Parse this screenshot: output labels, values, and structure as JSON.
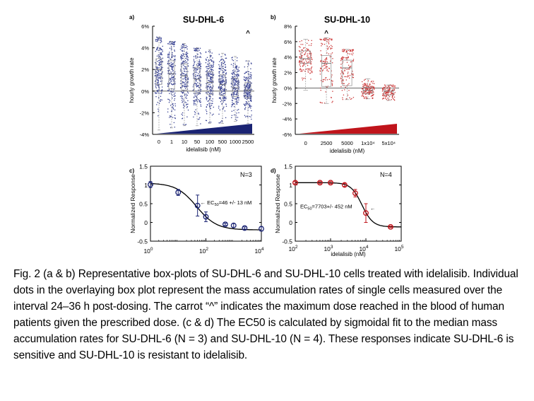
{
  "colors": {
    "navy": "#1a2373",
    "navy_dot": "#3a4494",
    "red": "#c0141b",
    "red_dot": "#cc3b3b",
    "axis": "#000000",
    "zero_line": "#555555",
    "box_line": "#9a9a9a"
  },
  "chart_data": [
    {
      "panel": "a)",
      "type": "box-scatter",
      "title": "SU-DHL-6",
      "xlabel": "idelalisib (nM)",
      "ylabel": "hourly growth rate",
      "yticks": [
        "6%",
        "4%",
        "2%",
        "0%",
        "-2%",
        "-4%"
      ],
      "ylim": [
        -4,
        6
      ],
      "categories": [
        "0",
        "1",
        "10",
        "50",
        "100",
        "500",
        "1000",
        "2500"
      ],
      "medians": [
        2.0,
        1.6,
        1.4,
        1.1,
        0.8,
        0.6,
        0.3,
        0.1
      ],
      "q1": [
        0.6,
        0.2,
        0.1,
        -0.2,
        -0.3,
        -0.4,
        -0.5,
        -0.6
      ],
      "q3": [
        3.0,
        2.8,
        2.5,
        2.2,
        1.8,
        1.5,
        1.2,
        0.8
      ],
      "whisker_low": [
        -3.6,
        -3.4,
        -3.2,
        -3.2,
        -3.0,
        -3.0,
        -2.8,
        -3.0
      ],
      "whisker_high": [
        5.0,
        4.6,
        4.4,
        4.0,
        3.8,
        3.5,
        3.2,
        2.8
      ],
      "caret_label": "^",
      "caret_category": "2500",
      "dose_wedge": "navy"
    },
    {
      "panel": "b)",
      "type": "box-scatter",
      "title": "SU-DHL-10",
      "xlabel": "idelalisib (nM)",
      "ylabel": "hourly growth rate",
      "yticks": [
        "8%",
        "6%",
        "4%",
        "2%",
        "0%",
        "-2%",
        "-4%",
        "-6%"
      ],
      "ylim": [
        -6,
        8
      ],
      "categories": [
        "0",
        "2500",
        "5000",
        "1x10⁴",
        "5x10⁴"
      ],
      "medians": [
        3.8,
        3.2,
        2.6,
        -0.3,
        -0.4
      ],
      "q1": [
        3.2,
        0.2,
        0.3,
        -0.7,
        -0.9
      ],
      "q3": [
        4.8,
        4.2,
        3.6,
        0.1,
        0.0
      ],
      "whisker_low": [
        -0.3,
        -2.0,
        -1.5,
        -1.4,
        -1.6
      ],
      "whisker_high": [
        6.3,
        6.5,
        5.0,
        1.2,
        0.4
      ],
      "caret_label": "^",
      "caret_category": "2500",
      "dose_wedge": "red"
    },
    {
      "panel": "c)",
      "type": "line",
      "xlabel": "",
      "ylabel": "Normalized Response",
      "xscale": "log",
      "xlim_exp": [
        0,
        4
      ],
      "xticks": [
        {
          "base": "10",
          "exp": "0"
        },
        {
          "base": "10",
          "exp": "2"
        },
        {
          "base": "10",
          "exp": "4"
        }
      ],
      "ylim": [
        -0.5,
        1.5
      ],
      "yticks": [
        "1.5",
        "1",
        "0.5",
        "0",
        "-0.5"
      ],
      "label": "N=3",
      "annotation": {
        "arrow": "←",
        "pre": "EC",
        "sub": "50",
        "post": "=46 +/- 13 nM"
      },
      "fit": {
        "bottom": -0.2,
        "top": 1.05,
        "ec50": 46,
        "hill": 1.2
      },
      "points": [
        {
          "x": 1,
          "y": 1.01,
          "err": 0.08
        },
        {
          "x": 10,
          "y": 0.8,
          "err": 0.08
        },
        {
          "x": 50,
          "y": 0.45,
          "err": 0.28
        },
        {
          "x": 100,
          "y": 0.15,
          "err": 0.13
        },
        {
          "x": 500,
          "y": -0.05,
          "err": 0.03
        },
        {
          "x": 1000,
          "y": -0.08,
          "err": 0.05
        },
        {
          "x": 2500,
          "y": -0.15,
          "err": 0.03
        },
        {
          "x": 10000,
          "y": -0.17,
          "err": 0.06
        }
      ],
      "series_color": "navy"
    },
    {
      "panel": "d)",
      "type": "line",
      "xlabel": "idelalisib (nM)",
      "ylabel": "Normalized Response",
      "xscale": "log",
      "xlim_exp": [
        2,
        5
      ],
      "xticks": [
        {
          "base": "10",
          "exp": "2"
        },
        {
          "base": "10",
          "exp": "3"
        },
        {
          "base": "10",
          "exp": "4"
        },
        {
          "base": "10",
          "exp": "5"
        }
      ],
      "ylim": [
        -0.5,
        1.5
      ],
      "yticks": [
        "1.5",
        "1",
        "0.5",
        "0",
        "-0.5"
      ],
      "label": "N=4",
      "annotation": {
        "arrow": "←",
        "pre": "EC",
        "sub": "50",
        "post": "=7703+/- 452 nM"
      },
      "fit": {
        "bottom": -0.12,
        "top": 1.06,
        "ec50": 7703,
        "hill": 2.8
      },
      "points": [
        {
          "x": 100,
          "y": 1.06,
          "err": 0.03
        },
        {
          "x": 500,
          "y": 1.06,
          "err": 0.03
        },
        {
          "x": 1000,
          "y": 1.06,
          "err": 0.03
        },
        {
          "x": 2500,
          "y": 1.0,
          "err": 0.04
        },
        {
          "x": 5000,
          "y": 0.78,
          "err": 0.1
        },
        {
          "x": 10000,
          "y": 0.25,
          "err": 0.25
        },
        {
          "x": 50000,
          "y": -0.12,
          "err": 0.02
        }
      ],
      "series_color": "red"
    }
  ],
  "caption": "Fig. 2 (a & b) Representative box-plots of SU-DHL-6 and SU-DHL-10 cells treated with idelalisib. Individual dots in the overlaying box plot represent the mass accumulation rates of single cells measured over the interval 24–36 h post-dosing. The carrot “^” indicates the maximum dose reached in the blood of human patients given the prescribed dose. (c & d) The EC50 is calculated by sigmoidal fit to the median mass accumulation rates for SU-DHL-6 (N = 3) and SU-DHL-10 (N = 4). These responses indicate SU-DHL-6 is sensitive and SU-DHL-10 is resistant to idelalisib."
}
